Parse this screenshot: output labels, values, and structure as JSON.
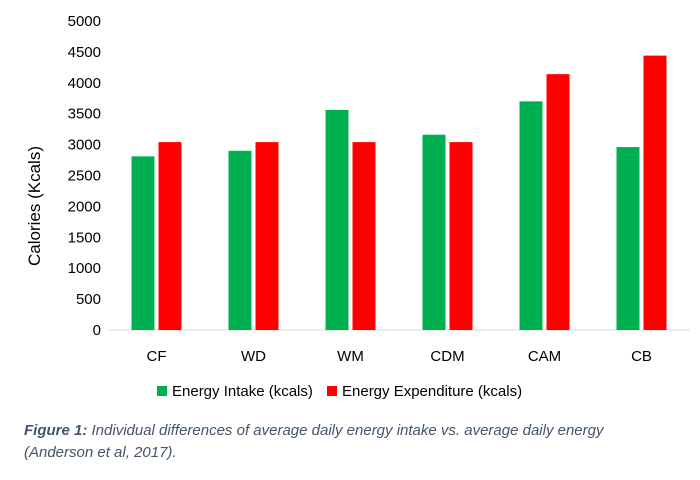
{
  "chart_data": {
    "type": "bar",
    "categories": [
      "CF",
      "WD",
      "WM",
      "CDM",
      "CAM",
      "CB"
    ],
    "series": [
      {
        "name": "Energy Intake (kcals)",
        "color": "#00b050",
        "values": [
          2810,
          2900,
          3560,
          3160,
          3700,
          2960
        ]
      },
      {
        "name": "Energy Expenditure (kcals)",
        "color": "#ff0000",
        "values": [
          3040,
          3040,
          3040,
          3040,
          4140,
          4440
        ]
      }
    ],
    "ylabel": "Calories (Kcals)",
    "xlabel": "",
    "ylim": [
      0,
      5000
    ],
    "yticks": [
      "0",
      "500",
      "1000",
      "1500",
      "2000",
      "2500",
      "3000",
      "3500",
      "4000",
      "4500",
      "5000"
    ],
    "grid": false,
    "legend_position": "bottom"
  },
  "caption": {
    "label": "Figure 1:",
    "text": " Individual differences of average daily energy intake vs. average daily energy (Anderson et al, 2017)."
  }
}
